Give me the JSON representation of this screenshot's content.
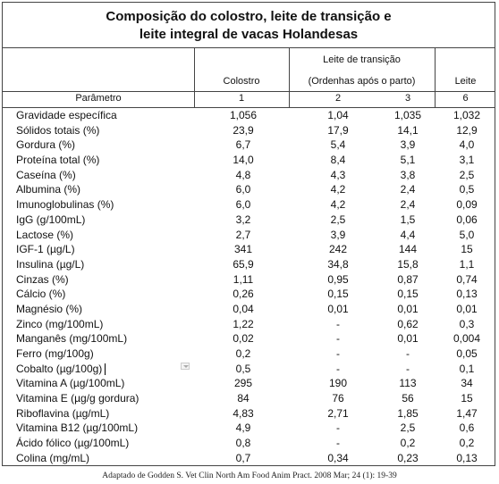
{
  "title_line1": "Composição do colostro, leite de transição e",
  "title_line2": "leite integral de vacas Holandesas",
  "header": {
    "transition_group": "Leite de transição",
    "colostro": "Colostro",
    "subtitle": "(Ordenhas após o parto)",
    "leite": "Leite",
    "parametro": "Parâmetro",
    "n1": "1",
    "n2": "2",
    "n3": "3",
    "n6": "6"
  },
  "rows": [
    {
      "param": "Gravidade específica",
      "c1": "1,056",
      "c2": "1,04",
      "c3": "1,035",
      "c4": "1,032"
    },
    {
      "param": "Sólidos totais (%)",
      "c1": "23,9",
      "c2": "17,9",
      "c3": "14,1",
      "c4": "12,9"
    },
    {
      "param": "Gordura (%)",
      "c1": "6,7",
      "c2": "5,4",
      "c3": "3,9",
      "c4": "4,0"
    },
    {
      "param": "Proteína total (%)",
      "c1": "14,0",
      "c2": "8,4",
      "c3": "5,1",
      "c4": "3,1"
    },
    {
      "param": "Caseína (%)",
      "c1": "4,8",
      "c2": "4,3",
      "c3": "3,8",
      "c4": "2,5"
    },
    {
      "param": "Albumina (%)",
      "c1": "6,0",
      "c2": "4,2",
      "c3": "2,4",
      "c4": "0,5"
    },
    {
      "param": "Imunoglobulinas (%)",
      "c1": "6,0",
      "c2": "4,2",
      "c3": "2,4",
      "c4": "0,09"
    },
    {
      "param": "IgG (g/100mL)",
      "c1": "3,2",
      "c2": "2,5",
      "c3": "1,5",
      "c4": "0,06"
    },
    {
      "param": "Lactose (%)",
      "c1": "2,7",
      "c2": "3,9",
      "c3": "4,4",
      "c4": "5,0"
    },
    {
      "param": "IGF-1 (µg/L)",
      "c1": "341",
      "c2": "242",
      "c3": "144",
      "c4": "15"
    },
    {
      "param": "Insulina (µg/L)",
      "c1": "65,9",
      "c2": "34,8",
      "c3": "15,8",
      "c4": "1,1"
    },
    {
      "param": "Cinzas (%)",
      "c1": "1,11",
      "c2": "0,95",
      "c3": "0,87",
      "c4": "0,74"
    },
    {
      "param": "Cálcio (%)",
      "c1": "0,26",
      "c2": "0,15",
      "c3": "0,15",
      "c4": "0,13"
    },
    {
      "param": "Magnésio (%)",
      "c1": "0,04",
      "c2": "0,01",
      "c3": "0,01",
      "c4": "0,01"
    },
    {
      "param": "Zinco (mg/100mL)",
      "c1": "1,22",
      "c2": "-",
      "c3": "0,62",
      "c4": "0,3"
    },
    {
      "param": "Manganês (mg/100mL)",
      "c1": "0,02",
      "c2": "-",
      "c3": "0,01",
      "c4": "0,004"
    },
    {
      "param": "Ferro (mg/100g)",
      "c1": "0,2",
      "c2": "-",
      "c3": "-",
      "c4": "0,05"
    },
    {
      "param": "Cobalto (µg/100g)",
      "c1": "0,5",
      "c2": "-",
      "c3": "-",
      "c4": "0,1"
    },
    {
      "param": "Vitamina A (µg/100mL)",
      "c1": "295",
      "c2": "190",
      "c3": "113",
      "c4": "34"
    },
    {
      "param": "Vitamina E (µg/g gordura)",
      "c1": "84",
      "c2": "76",
      "c3": "56",
      "c4": "15"
    },
    {
      "param": "Riboflavina (µg/mL)",
      "c1": "4,83",
      "c2": "2,71",
      "c3": "1,85",
      "c4": "1,47"
    },
    {
      "param": "Vitamina B12 (µg/100mL)",
      "c1": "4,9",
      "c2": "-",
      "c3": "2,5",
      "c4": "0,6"
    },
    {
      "param": "Ácido fólico (µg/100mL)",
      "c1": "0,8",
      "c2": "-",
      "c3": "0,2",
      "c4": "0,2"
    },
    {
      "param": "Colina (mg/mL)",
      "c1": "0,7",
      "c2": "0,34",
      "c3": "0,23",
      "c4": "0,13"
    }
  ],
  "source": "Adaptado de Godden S. Vet Clin North Am Food Anim Pract. 2008 Mar; 24 (1): 19-39"
}
